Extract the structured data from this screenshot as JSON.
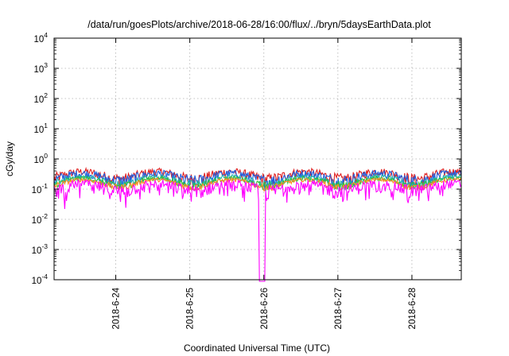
{
  "chart_data": {
    "type": "line",
    "title": "/data/run/goesPlots/archive/2018-06-28/16:00/flux/../bryn/5daysEarthData.plot",
    "xlabel": "Coordinated Universal Time (UTC)",
    "ylabel": "cGy/day",
    "y_scale": "log",
    "ylim": [
      0.0001,
      10000
    ],
    "y_ticks": [
      {
        "base": "10",
        "exp": "-4"
      },
      {
        "base": "10",
        "exp": "-3"
      },
      {
        "base": "10",
        "exp": "-2"
      },
      {
        "base": "10",
        "exp": "-1"
      },
      {
        "base": "10",
        "exp": "0"
      },
      {
        "base": "10",
        "exp": "1"
      },
      {
        "base": "10",
        "exp": "2"
      },
      {
        "base": "10",
        "exp": "3"
      },
      {
        "base": "10",
        "exp": "4"
      }
    ],
    "x_range": [
      "2018-06-23 04:00",
      "2018-06-28 16:00"
    ],
    "x_ticks": [
      "2018-6-24",
      "2018-6-25",
      "2018-6-26",
      "2018-6-27",
      "2018-6-28"
    ],
    "grid": true,
    "series": [
      {
        "color": "#e02020",
        "level": 0.3,
        "amplitude": 0.11
      },
      {
        "color": "#1f5fe0",
        "level": 0.26,
        "amplitude": 0.1
      },
      {
        "color": "#20b0b0",
        "level": 0.2,
        "amplitude": 0.05
      },
      {
        "color": "#30c040",
        "level": 0.18,
        "amplitude": 0.04
      },
      {
        "color": "#ff8a20",
        "level": 0.16,
        "amplitude": 0.03
      },
      {
        "color": "#ff00ff",
        "level": 0.12,
        "amplitude": 0.05
      }
    ],
    "dropout": {
      "start": "2018-06-25 22:30",
      "end": "2018-06-26 00:20",
      "series_color": "#ff00ff"
    }
  }
}
